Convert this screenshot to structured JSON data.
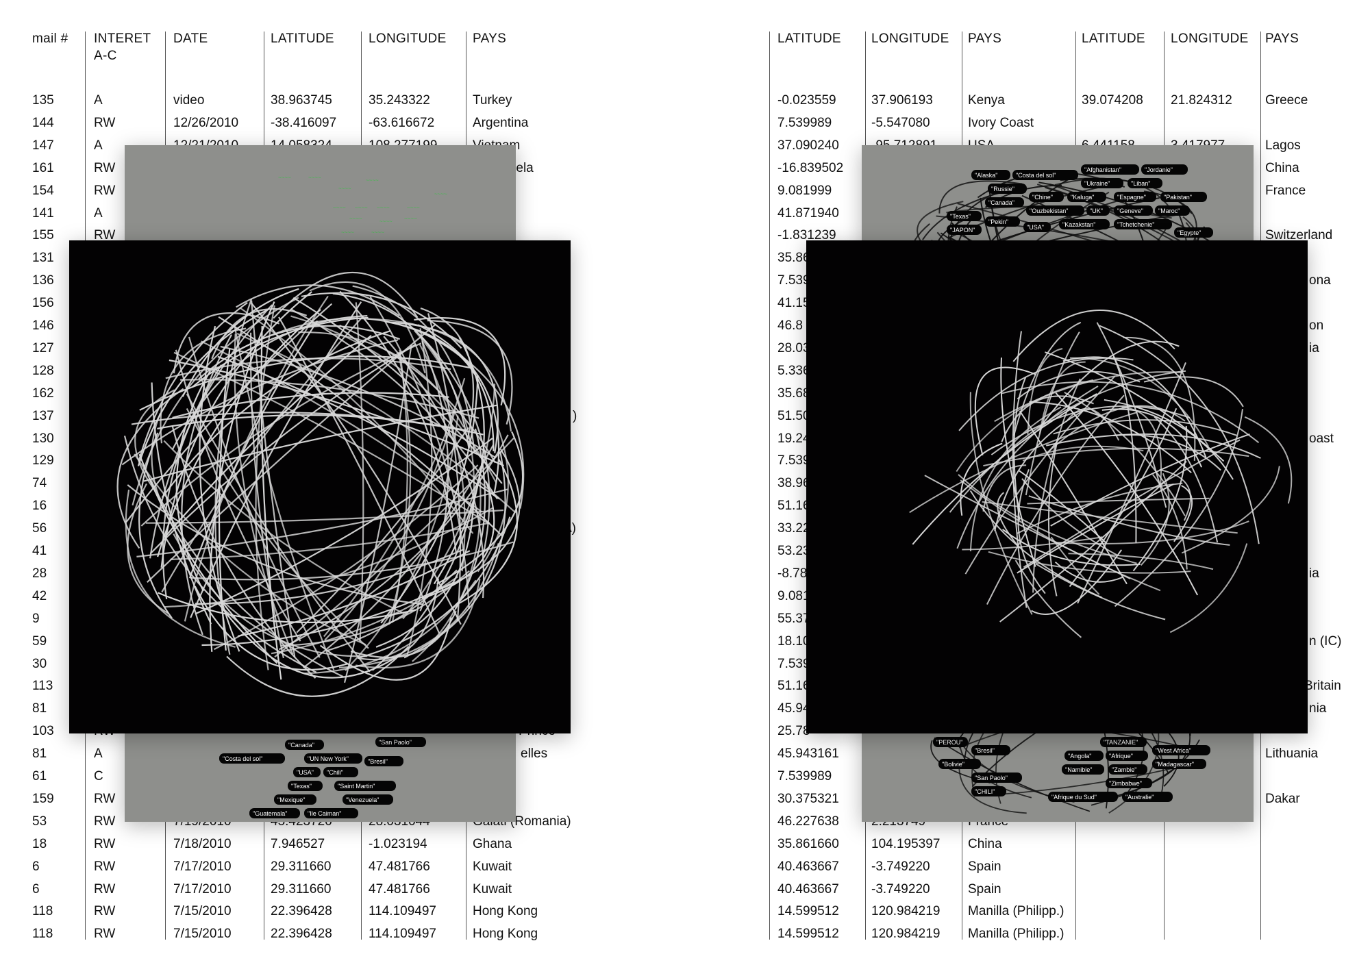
{
  "left_table": {
    "headers": [
      "mail #",
      "INTERET\nA-C",
      "DATE",
      "LATITUDE",
      "LONGITUDE",
      "PAYS"
    ],
    "rows": [
      [
        "135",
        "A",
        "video",
        "38.963745",
        "35.243322",
        "Turkey"
      ],
      [
        "144",
        "RW",
        "12/26/2010",
        "-38.416097",
        "-63.616672",
        "Argentina"
      ],
      [
        "147",
        "A",
        "12/21/2010",
        "14.058324",
        "108.277199",
        "Vietnam"
      ],
      [
        "161",
        "RW",
        "",
        "",
        "",
        "Venezuela"
      ],
      [
        "154",
        "RW",
        "",
        "",
        "",
        ""
      ],
      [
        "141",
        "A",
        "",
        "",
        "",
        ""
      ],
      [
        "155",
        "RW",
        "",
        "",
        "",
        ""
      ],
      [
        "131",
        "",
        "",
        "",
        "",
        ""
      ],
      [
        "136",
        "",
        "",
        "",
        "",
        ""
      ],
      [
        "156",
        "",
        "",
        "",
        "",
        ""
      ],
      [
        "146",
        "",
        "",
        "",
        "",
        ""
      ],
      [
        "127",
        "",
        "",
        "",
        "",
        ""
      ],
      [
        "128",
        "",
        "",
        "",
        "",
        ""
      ],
      [
        "162",
        "",
        "",
        "",
        "",
        ""
      ],
      [
        "137",
        "",
        "",
        "",
        "",
        ")"
      ],
      [
        "130",
        "",
        "",
        "",
        "",
        ""
      ],
      [
        "129",
        "",
        "",
        "",
        "",
        ""
      ],
      [
        "74",
        "",
        "",
        "",
        "",
        ""
      ],
      [
        "16",
        "",
        "",
        "",
        "",
        ""
      ],
      [
        "56",
        "",
        "",
        "",
        "",
        "A)"
      ],
      [
        "41",
        "",
        "",
        "",
        "",
        ""
      ],
      [
        "28",
        "",
        "",
        "",
        "",
        ""
      ],
      [
        "42",
        "",
        "",
        "",
        "",
        ""
      ],
      [
        "9",
        "",
        "",
        "",
        "",
        ""
      ],
      [
        "59",
        "",
        "",
        "",
        "",
        ""
      ],
      [
        "30",
        "",
        "",
        "",
        "",
        ""
      ],
      [
        "113",
        "",
        "",
        "",
        "",
        ""
      ],
      [
        "81",
        "",
        "",
        "",
        "",
        ""
      ],
      [
        "103",
        "RW",
        "",
        "",
        "",
        "Prince"
      ],
      [
        "81",
        "A",
        "",
        "",
        "",
        "elles"
      ],
      [
        "61",
        "C",
        "",
        "",
        "",
        ""
      ],
      [
        "159",
        "RW",
        "",
        "",
        "",
        ""
      ],
      [
        "53",
        "RW",
        "7/19/2010",
        "45.423720",
        "28.031044",
        "Galati (Romania)"
      ],
      [
        "18",
        "RW",
        "7/18/2010",
        "7.946527",
        "-1.023194",
        "Ghana"
      ],
      [
        "6",
        "RW",
        "7/17/2010",
        "29.311660",
        "47.481766",
        "Kuwait"
      ],
      [
        "6",
        "RW",
        "7/17/2010",
        "29.311660",
        "47.481766",
        "Kuwait"
      ],
      [
        "118",
        "RW",
        "7/15/2010",
        "22.396428",
        "114.109497",
        "Hong Kong"
      ],
      [
        "118",
        "RW",
        "7/15/2010",
        "22.396428",
        "114.109497",
        "Hong Kong"
      ]
    ]
  },
  "right_table": {
    "headers": [
      "LATITUDE",
      "LONGITUDE",
      "PAYS",
      "LATITUDE",
      "LONGITUDE",
      "PAYS"
    ],
    "rows": [
      [
        "-0.023559",
        "37.906193",
        "Kenya",
        "39.074208",
        "21.824312",
        "Greece"
      ],
      [
        "7.539989",
        "-5.547080",
        "Ivory Coast",
        "",
        "",
        ""
      ],
      [
        "37.090240",
        "-95.712891",
        "USA",
        "6.441158",
        "3.417977",
        "Lagos"
      ],
      [
        "-16.839502",
        "",
        "",
        "",
        "",
        "China"
      ],
      [
        "9.081999",
        "",
        "",
        "",
        "",
        "France"
      ],
      [
        "41.871940",
        "",
        "",
        "",
        "",
        ""
      ],
      [
        "-1.831239",
        "",
        "",
        "",
        "",
        "Switzerland"
      ],
      [
        "35.86",
        "",
        "",
        "",
        "",
        ""
      ],
      [
        "7.539",
        "",
        "",
        "",
        "",
        "ona"
      ],
      [
        "41.15",
        "",
        "",
        "",
        "",
        ""
      ],
      [
        "46.8",
        "",
        "",
        "",
        "",
        "on"
      ],
      [
        "28.03",
        "",
        "",
        "",
        "",
        "ia"
      ],
      [
        "5.336",
        "",
        "",
        "",
        "",
        ""
      ],
      [
        "35.68",
        "",
        "",
        "",
        "",
        ""
      ],
      [
        "51.50",
        "",
        "",
        "",
        "",
        ""
      ],
      [
        "19.24",
        "",
        "",
        "",
        "",
        "oast"
      ],
      [
        "7.539",
        "",
        "",
        "",
        "",
        ""
      ],
      [
        "38.96",
        "",
        "",
        "",
        "",
        ""
      ],
      [
        "51.16",
        "",
        "",
        "",
        "",
        ""
      ],
      [
        "33.22",
        "",
        "",
        "",
        "",
        ""
      ],
      [
        "53.23",
        "",
        "",
        "",
        "",
        ""
      ],
      [
        "-8.78",
        "",
        "",
        "",
        "",
        "ia"
      ],
      [
        "9.081",
        "",
        "",
        "",
        "",
        ""
      ],
      [
        "55.37",
        "",
        "",
        "",
        "",
        ""
      ],
      [
        "18.10",
        "",
        "",
        "",
        "",
        "n (IC)"
      ],
      [
        "7.539",
        "",
        "",
        "",
        "",
        ""
      ],
      [
        "51.16",
        "",
        "",
        "",
        "",
        "Britain"
      ],
      [
        "45.94",
        "",
        "",
        "",
        "",
        "nia"
      ],
      [
        "25.78",
        "",
        "",
        "",
        "",
        ""
      ],
      [
        "45.943161",
        "",
        "",
        "",
        "",
        "Lithuania"
      ],
      [
        "7.539989",
        "",
        "",
        "",
        "",
        ""
      ],
      [
        "30.375321",
        "",
        "",
        "",
        "",
        "Dakar"
      ],
      [
        "46.227638",
        "2.213749",
        "France",
        "",
        "",
        ""
      ],
      [
        "35.861660",
        "104.195397",
        "China",
        "",
        "",
        ""
      ],
      [
        "40.463667",
        "-3.749220",
        "Spain",
        "",
        "",
        ""
      ],
      [
        "40.463667",
        "-3.749220",
        "Spain",
        "",
        "",
        ""
      ],
      [
        "14.599512",
        "120.984219",
        "Manilla (Philipp.)",
        "",
        "",
        ""
      ],
      [
        "14.599512",
        "120.984219",
        "Manilla (Philipp.)",
        "",
        "",
        ""
      ]
    ]
  },
  "images": {
    "left_gray_bottom_labels": [
      "\"Canada\"",
      "\"Costa del sol\"",
      "\"UN New York\"",
      "\"USA\"",
      "\"Chili\"",
      "\"San Paolo\"",
      "\"Bresil\"",
      "\"Texas\"",
      "\"Saint Martin\"",
      "\"Mexique\"",
      "\"Venezuela\"",
      "\"Ile Caiman\"",
      "\"Guatemala\""
    ],
    "right_gray_top_labels": [
      "\"Alaska\"",
      "\"Russie\"",
      "\"Canada\"",
      "\"Kaluga\"",
      "\"UK\"",
      "\"Kazakstan\"",
      "\"Ukraine\"",
      "\"Geneve\"",
      "\"Tchetchenie\"",
      "\"Ouzbekistan\"",
      "\"Espagne\"",
      "\"Pekin\"",
      "\"USA\"",
      "\"JAPON\"",
      "\"Chine\"",
      "\"Costa del sol\"",
      "\"Texas\"",
      "\"Afghanistan\"",
      "\"Liban\"",
      "\"Maroc\"",
      "\"Pakistan\"",
      "\"Jordanie\"",
      "\"Egypte\""
    ],
    "right_gray_bottom_labels": [
      "\"PEROU\"",
      "\"Bresil\"",
      "\"Bolivie\"",
      "\"San Paolo\"",
      "\"CHILI\"",
      "\"TANZANIE\"",
      "\"Afrique\"",
      "\"Angola\"",
      "\"Zambie\"",
      "\"West Africa\"",
      "\"Zimbabwe\"",
      "\"Madagascar\"",
      "\"Namibie\"",
      "\"Australie\"",
      "\"Afrique du Sud\""
    ],
    "colors": {
      "gray_panel": "#8e8f8c",
      "black_panel": "#030203",
      "render_lines": "#d8d8d8",
      "green_labels": "#3fbf4a"
    }
  }
}
